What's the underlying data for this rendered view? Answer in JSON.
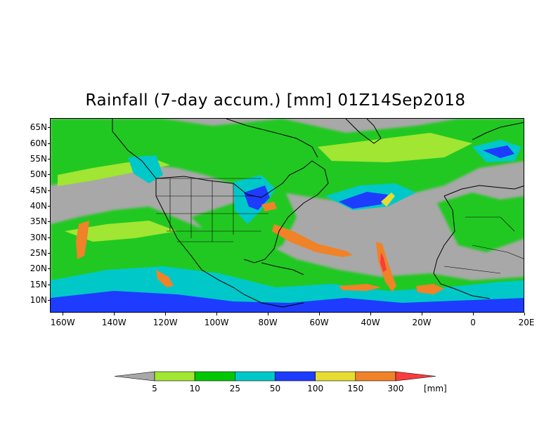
{
  "map": {
    "title": "Rainfall (7-day accum.) [mm] 01Z14Sep2018",
    "lat_ticks": [
      "65N",
      "60N",
      "55N",
      "50N",
      "45N",
      "40N",
      "35N",
      "30N",
      "25N",
      "20N",
      "15N",
      "10N"
    ],
    "lon_ticks": [
      "160W",
      "140W",
      "120W",
      "100W",
      "80W",
      "60W",
      "40W",
      "20W",
      "0",
      "20E"
    ],
    "lat_range": [
      6,
      68
    ],
    "lon_range": [
      -165,
      20
    ],
    "background_color": "#a8a8a8",
    "coastline_color": "#000000"
  },
  "colorbar": {
    "unit": "[mm]",
    "labels": [
      "5",
      "10",
      "25",
      "50",
      "100",
      "150",
      "300"
    ],
    "colors": [
      "#a8a8a8",
      "#a0e632",
      "#00c800",
      "#00c8c8",
      "#1e3cff",
      "#e6dc32",
      "#f08228",
      "#fa3c3c"
    ]
  }
}
